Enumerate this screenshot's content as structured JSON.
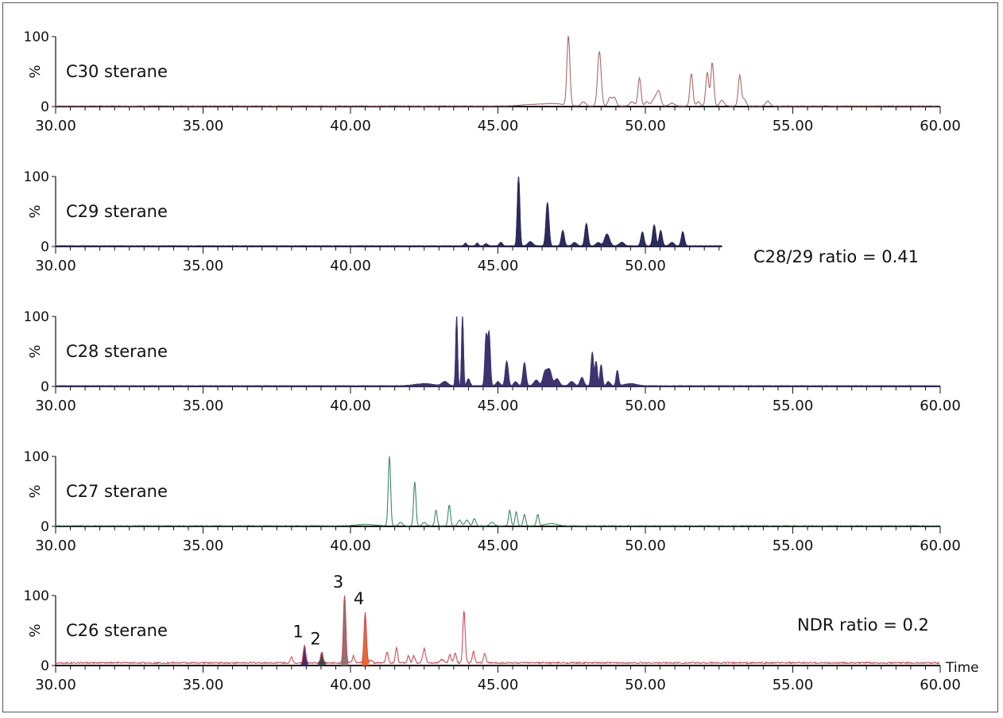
{
  "chart_data": [
    {
      "type": "line",
      "label": "C30 sterane",
      "color": "#a86a6a",
      "filled": false,
      "xlim": [
        30,
        60
      ],
      "trace_range": [
        30,
        60
      ],
      "ylabel": "%",
      "yticks": [
        "0",
        "100"
      ],
      "xticks": [
        "30.00",
        "35.00",
        "40.00",
        "45.00",
        "50.00",
        "55.00",
        "60.00"
      ],
      "peaks": [
        [
          46.2,
          2,
          0.4
        ],
        [
          46.9,
          3,
          0.3
        ],
        [
          47.39,
          100,
          0.05
        ],
        [
          47.9,
          6,
          0.07
        ],
        [
          48.44,
          78,
          0.06
        ],
        [
          48.8,
          12,
          0.06
        ],
        [
          48.95,
          12,
          0.06
        ],
        [
          49.55,
          6,
          0.08
        ],
        [
          49.8,
          40,
          0.05
        ],
        [
          50.05,
          6,
          0.06
        ],
        [
          50.3,
          10,
          0.08
        ],
        [
          50.45,
          20,
          0.07
        ],
        [
          50.9,
          4,
          0.08
        ],
        [
          51.56,
          46,
          0.05
        ],
        [
          51.8,
          6,
          0.06
        ],
        [
          52.1,
          48,
          0.05
        ],
        [
          52.27,
          62,
          0.05
        ],
        [
          52.6,
          8,
          0.07
        ],
        [
          53.2,
          44,
          0.05
        ],
        [
          53.35,
          10,
          0.06
        ],
        [
          54.15,
          7,
          0.07
        ]
      ]
    },
    {
      "type": "area",
      "label": "C29 sterane",
      "color": "#2b2b5c",
      "filled": true,
      "xlim": [
        30,
        52.6
      ],
      "trace_range": [
        30,
        52.6
      ],
      "ylabel": "%",
      "yticks": [
        "0",
        "100"
      ],
      "xticks": [
        "30.00",
        "35.00",
        "40.00",
        "45.00",
        "50.00"
      ],
      "annotation": "C28/29 ratio = 0.41",
      "peaks": [
        [
          43.9,
          4,
          0.04
        ],
        [
          44.3,
          4,
          0.04
        ],
        [
          44.6,
          3,
          0.05
        ],
        [
          45.1,
          5,
          0.05
        ],
        [
          45.7,
          100,
          0.04
        ],
        [
          46.1,
          6,
          0.08
        ],
        [
          46.68,
          62,
          0.05
        ],
        [
          47.2,
          22,
          0.05
        ],
        [
          47.6,
          5,
          0.07
        ],
        [
          48.0,
          32,
          0.05
        ],
        [
          48.4,
          5,
          0.07
        ],
        [
          48.7,
          17,
          0.08
        ],
        [
          49.2,
          5,
          0.08
        ],
        [
          49.9,
          20,
          0.05
        ],
        [
          50.3,
          30,
          0.05
        ],
        [
          50.52,
          22,
          0.05
        ],
        [
          50.9,
          5,
          0.07
        ],
        [
          51.27,
          20,
          0.05
        ]
      ]
    },
    {
      "type": "area",
      "label": "C28 sterane",
      "color": "#3e3370",
      "filled": true,
      "xlim": [
        30,
        60
      ],
      "trace_range": [
        30,
        60
      ],
      "ylabel": "%",
      "yticks": [
        "0",
        "100"
      ],
      "xticks": [
        "30.00",
        "35.00",
        "40.00",
        "45.00",
        "50.00",
        "55.00",
        "60.00"
      ],
      "peaks": [
        [
          42.5,
          3,
          0.3
        ],
        [
          43.2,
          6,
          0.1
        ],
        [
          43.6,
          100,
          0.03
        ],
        [
          43.8,
          100,
          0.03
        ],
        [
          44.0,
          10,
          0.05
        ],
        [
          44.6,
          72,
          0.04
        ],
        [
          44.7,
          75,
          0.04
        ],
        [
          45.0,
          6,
          0.06
        ],
        [
          45.3,
          35,
          0.05
        ],
        [
          45.6,
          6,
          0.06
        ],
        [
          45.9,
          33,
          0.05
        ],
        [
          46.3,
          8,
          0.08
        ],
        [
          46.6,
          20,
          0.07
        ],
        [
          46.75,
          22,
          0.07
        ],
        [
          47.0,
          10,
          0.08
        ],
        [
          47.5,
          6,
          0.08
        ],
        [
          47.85,
          12,
          0.06
        ],
        [
          48.2,
          48,
          0.04
        ],
        [
          48.33,
          35,
          0.04
        ],
        [
          48.5,
          30,
          0.04
        ],
        [
          48.75,
          6,
          0.06
        ],
        [
          49.05,
          22,
          0.04
        ],
        [
          49.5,
          3,
          0.2
        ]
      ]
    },
    {
      "type": "line",
      "label": "C27 sterane",
      "color": "#3a8a5a",
      "filled": false,
      "xlim": [
        30,
        60
      ],
      "trace_range": [
        30,
        60
      ],
      "ylabel": "%",
      "yticks": [
        "0",
        "100"
      ],
      "xticks": [
        "30.00",
        "35.00",
        "40.00",
        "45.00",
        "50.00",
        "55.00",
        "60.00"
      ],
      "peaks": [
        [
          40.5,
          2,
          0.3
        ],
        [
          41.32,
          100,
          0.04
        ],
        [
          41.7,
          5,
          0.06
        ],
        [
          42.18,
          63,
          0.04
        ],
        [
          42.5,
          5,
          0.06
        ],
        [
          42.9,
          22,
          0.04
        ],
        [
          43.35,
          30,
          0.04
        ],
        [
          43.7,
          8,
          0.06
        ],
        [
          43.95,
          8,
          0.06
        ],
        [
          44.2,
          10,
          0.05
        ],
        [
          44.8,
          5,
          0.07
        ],
        [
          45.4,
          22,
          0.04
        ],
        [
          45.62,
          20,
          0.04
        ],
        [
          45.9,
          16,
          0.04
        ],
        [
          46.35,
          16,
          0.04
        ],
        [
          46.8,
          3,
          0.2
        ]
      ]
    },
    {
      "type": "line",
      "label": "C26 sterane",
      "color": "#d04a58",
      "filled": false,
      "xlim": [
        30,
        60
      ],
      "trace_range": [
        30,
        60
      ],
      "ylabel": "%",
      "yticks": [
        "0",
        "100"
      ],
      "xticks": [
        "30.00",
        "35.00",
        "40.00",
        "45.00",
        "50.00",
        "55.00",
        "60.00"
      ],
      "annotation": "NDR ratio = 0.2",
      "xlabel": "Time",
      "peaks": [
        [
          38.0,
          8,
          0.04
        ],
        [
          38.44,
          26,
          0.04
        ],
        [
          39.03,
          16,
          0.04
        ],
        [
          39.8,
          100,
          0.04
        ],
        [
          40.1,
          10,
          0.04
        ],
        [
          40.5,
          72,
          0.04
        ],
        [
          40.7,
          4,
          0.05
        ],
        [
          41.24,
          16,
          0.04
        ],
        [
          41.56,
          22,
          0.04
        ],
        [
          41.97,
          10,
          0.04
        ],
        [
          42.15,
          10,
          0.04
        ],
        [
          42.5,
          20,
          0.05
        ],
        [
          43.1,
          5,
          0.06
        ],
        [
          43.37,
          12,
          0.04
        ],
        [
          43.55,
          15,
          0.04
        ],
        [
          43.85,
          75,
          0.04
        ],
        [
          44.17,
          16,
          0.04
        ],
        [
          44.55,
          14,
          0.04
        ]
      ],
      "labeled_peaks": [
        {
          "label": "1",
          "time": 38.44,
          "color": "#4a2a6a"
        },
        {
          "label": "2",
          "time": 39.03,
          "color": "#3a4a4a"
        },
        {
          "label": "3",
          "time": 39.8,
          "color": "#8a7474"
        },
        {
          "label": "4",
          "time": 40.5,
          "color": "#e86a2a"
        }
      ]
    }
  ]
}
